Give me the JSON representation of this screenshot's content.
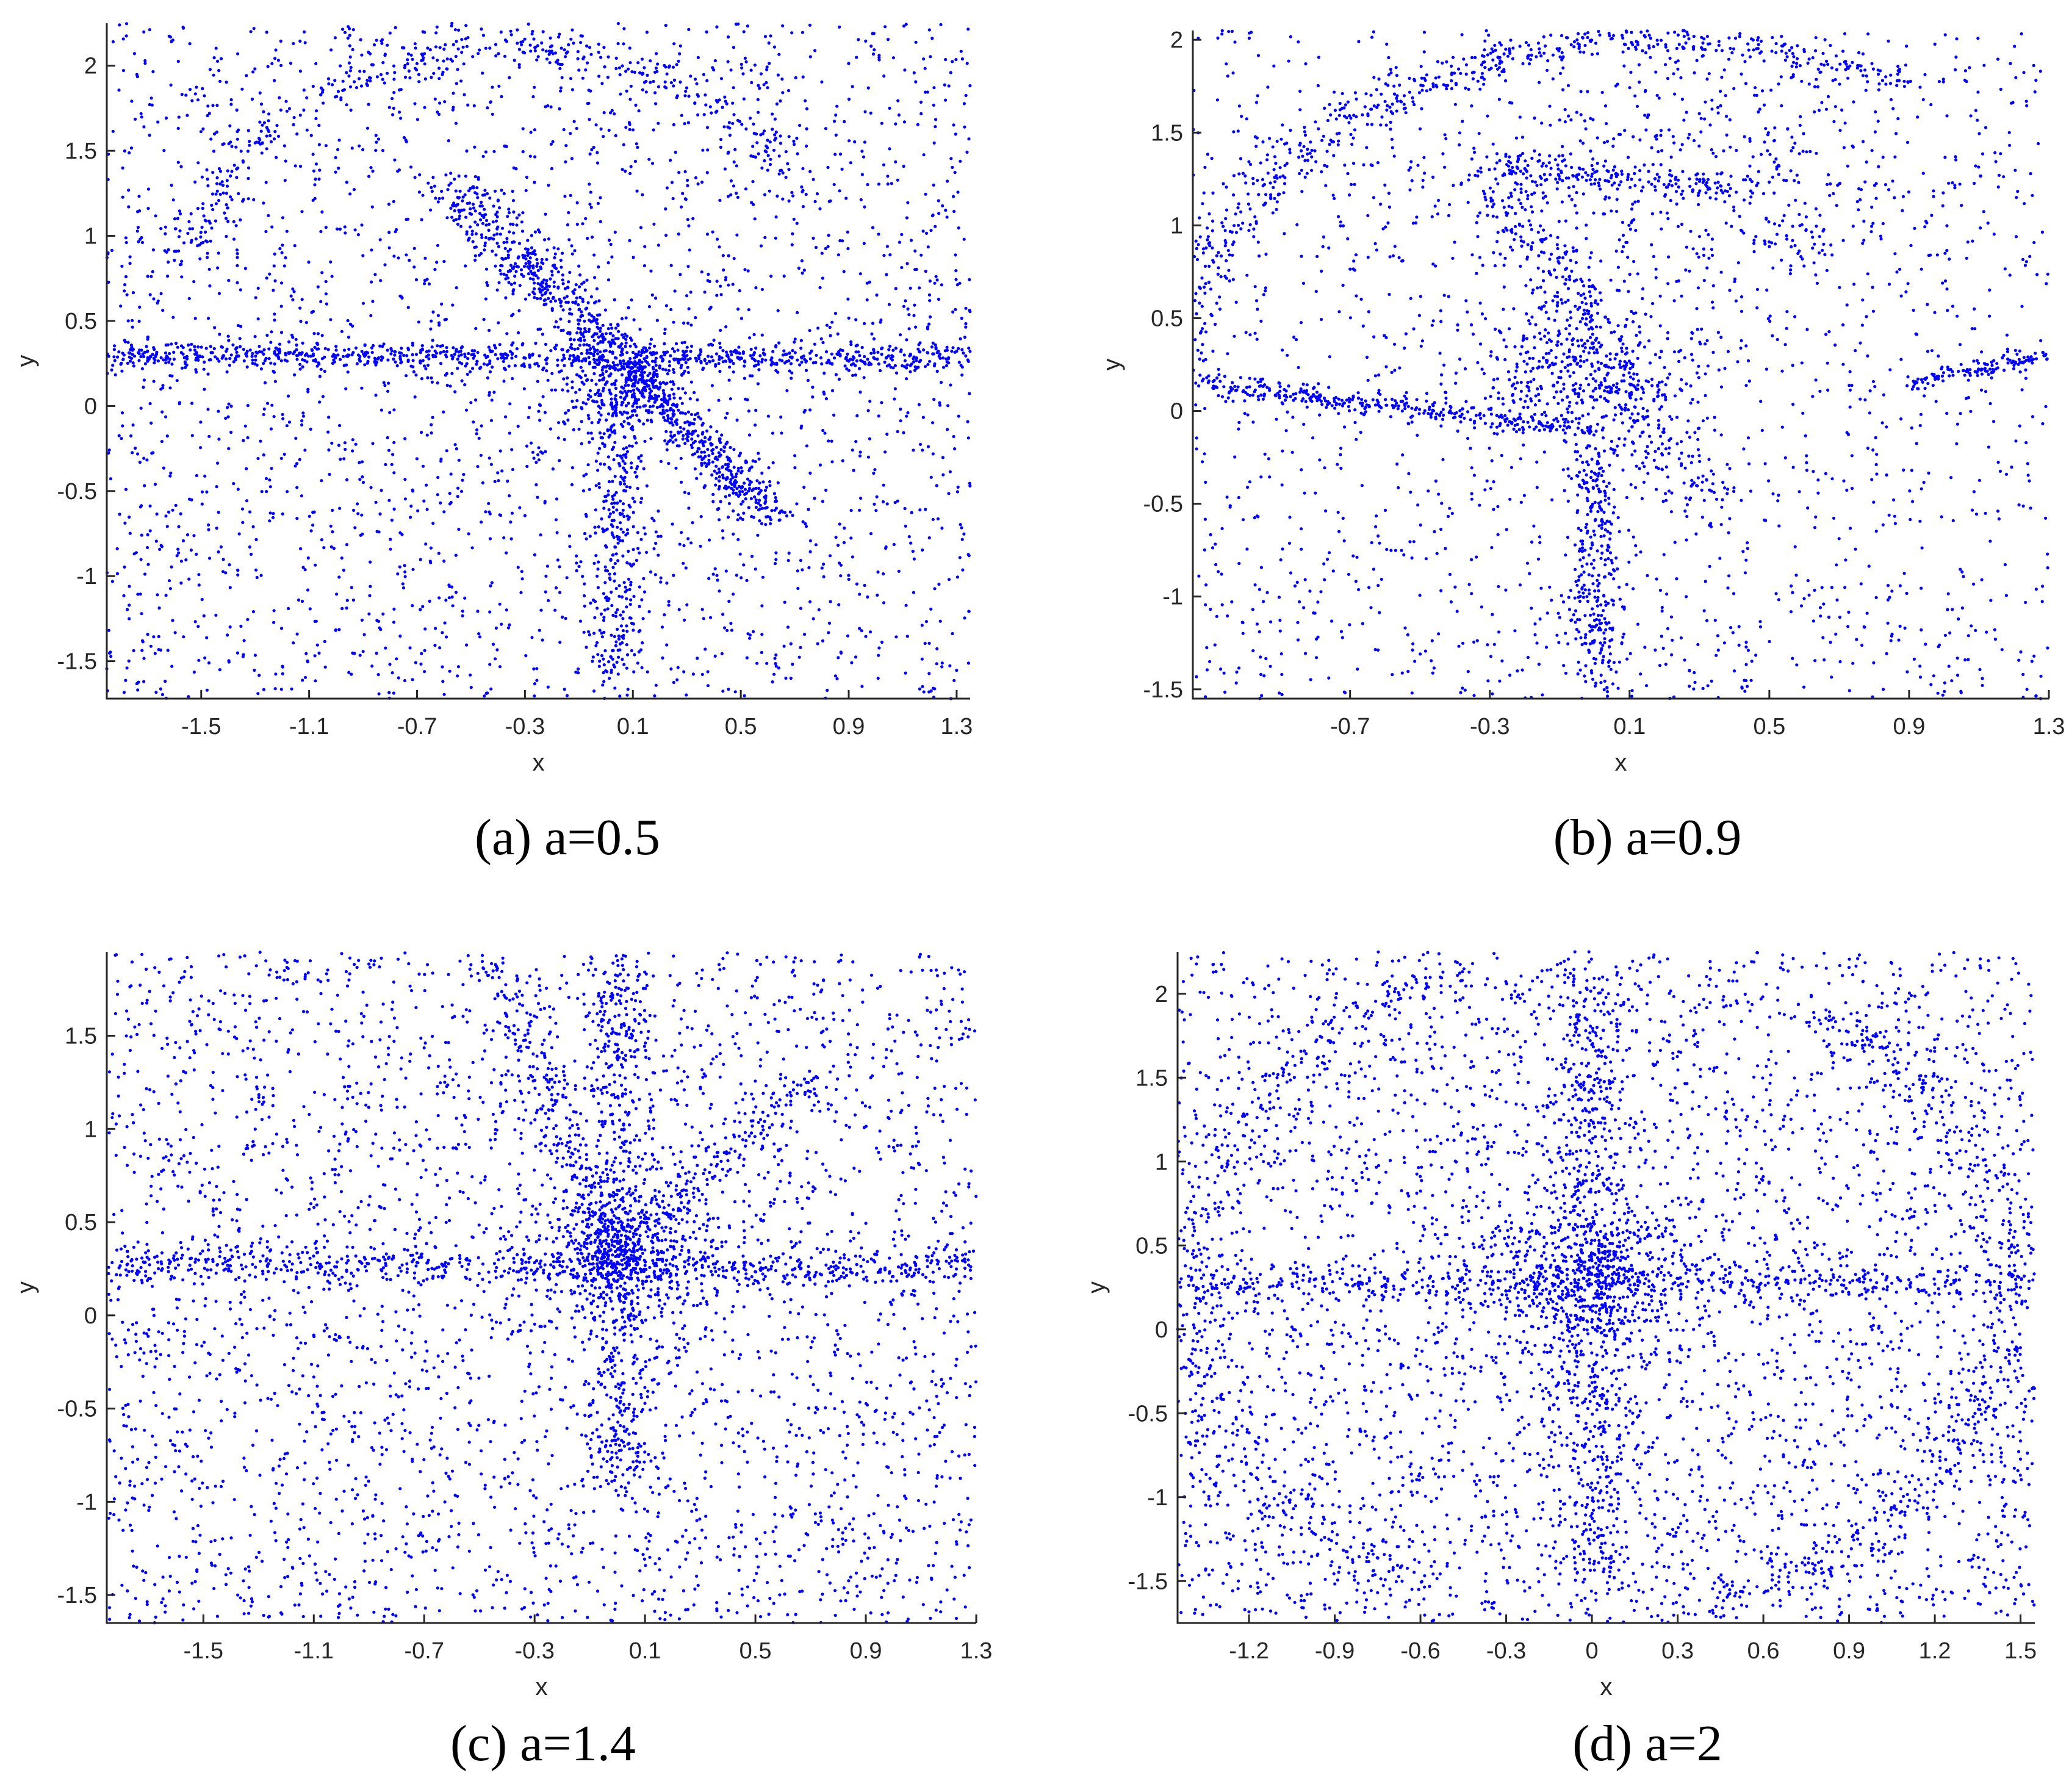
{
  "figure": {
    "point_color": "#0000ff",
    "axis_color": "#262626"
  },
  "chart_data": [
    {
      "type": "scatter",
      "caption": "(a) a=0.5",
      "xlabel": "x",
      "ylabel": "y",
      "xlim": [
        -1.85,
        1.35
      ],
      "ylim": [
        -1.72,
        2.25
      ],
      "xticks": [
        -1.5,
        -1.1,
        -0.7,
        -0.3,
        0.1,
        0.5,
        0.9,
        1.3
      ],
      "xtick_labels": [
        "-1.5",
        "-1.1",
        "-0.7",
        "-0.3",
        "0.1",
        "0.5",
        "0.9",
        "1.3"
      ],
      "yticks": [
        -1.5,
        -1,
        -0.5,
        0,
        0.5,
        1,
        1.5,
        2
      ],
      "ytick_labels": [
        "-1.5",
        "-1",
        "-0.5",
        "0",
        "0.5",
        "1",
        "1.5",
        "2"
      ],
      "points": {
        "count": 5200,
        "seed": 11,
        "uniform_fraction": 0.5,
        "structures": [
          {
            "kind": "line",
            "from": [
              -1.85,
              0.3
            ],
            "to": [
              1.35,
              0.28
            ],
            "weight": 0.16,
            "spread": 0.04
          },
          {
            "kind": "line",
            "from": [
              -0.6,
              1.3
            ],
            "to": [
              0.05,
              0.3
            ],
            "weight": 0.08,
            "spread": 0.06
          },
          {
            "kind": "line",
            "from": [
              0.05,
              0.3
            ],
            "to": [
              0.6,
              -0.65
            ],
            "weight": 0.08,
            "spread": 0.05
          },
          {
            "kind": "line",
            "from": [
              0.05,
              0.3
            ],
            "to": [
              0.05,
              -1.6
            ],
            "weight": 0.06,
            "spread": 0.05
          },
          {
            "kind": "arc",
            "center": [
              -0.35,
              0.6
            ],
            "rx": 1.2,
            "ry": 1.5,
            "from_deg": 30,
            "to_deg": 170,
            "weight": 0.07,
            "spread": 0.06
          },
          {
            "kind": "blob",
            "center": [
              0.05,
              0.1
            ],
            "r": 0.25,
            "weight": 0.05
          }
        ]
      }
    },
    {
      "type": "scatter",
      "caption": "(b) a=0.9",
      "xlabel": "x",
      "ylabel": "y",
      "xlim": [
        -1.15,
        1.3
      ],
      "ylim": [
        -1.55,
        2.05
      ],
      "xticks": [
        -0.7,
        -0.3,
        0.1,
        0.5,
        0.9,
        1.3
      ],
      "xtick_labels": [
        "-0.7",
        "-0.3",
        "0.1",
        "0.5",
        "0.9",
        "1.3"
      ],
      "yticks": [
        -1.5,
        -1,
        -0.5,
        0,
        0.5,
        1,
        1.5,
        2
      ],
      "ytick_labels": [
        "-1.5",
        "-1",
        "-0.5",
        "0",
        "0.5",
        "1",
        "1.5",
        "2"
      ],
      "points": {
        "count": 4200,
        "seed": 23,
        "uniform_fraction": 0.4,
        "structures": [
          {
            "kind": "line",
            "from": [
              -1.15,
              0.15
            ],
            "to": [
              0.0,
              -0.1
            ],
            "weight": 0.08,
            "spread": 0.03
          },
          {
            "kind": "line",
            "from": [
              0.9,
              0.15
            ],
            "to": [
              1.3,
              0.3
            ],
            "weight": 0.03,
            "spread": 0.02
          },
          {
            "kind": "line",
            "from": [
              0.0,
              -0.2
            ],
            "to": [
              0.0,
              -1.5
            ],
            "weight": 0.07,
            "spread": 0.04
          },
          {
            "kind": "line",
            "from": [
              -0.3,
              1.3
            ],
            "to": [
              0.3,
              -0.5
            ],
            "weight": 0.09,
            "spread": 0.07
          },
          {
            "kind": "line",
            "from": [
              -0.3,
              1.3
            ],
            "to": [
              0.45,
              1.2
            ],
            "weight": 0.04,
            "spread": 0.04
          },
          {
            "kind": "arc",
            "center": [
              0.2,
              0.1
            ],
            "rx": 1.4,
            "ry": 1.9,
            "from_deg": 60,
            "to_deg": 175,
            "weight": 0.14,
            "spread": 0.05
          },
          {
            "kind": "blob",
            "center": [
              -0.05,
              0.2
            ],
            "r": 0.3,
            "weight": 0.08
          },
          {
            "kind": "blob",
            "center": [
              0.3,
              1.2
            ],
            "r": 0.6,
            "weight": 0.07
          }
        ]
      }
    },
    {
      "type": "scatter",
      "caption": "(c) a=1.4",
      "xlabel": "x",
      "ylabel": "y",
      "xlim": [
        -1.85,
        1.3
      ],
      "ylim": [
        -1.65,
        1.95
      ],
      "xticks": [
        -1.5,
        -1.1,
        -0.7,
        -0.3,
        0.1,
        0.5,
        0.9,
        1.3
      ],
      "xtick_labels": [
        "-1.5",
        "-1.1",
        "-0.7",
        "-0.3",
        "0.1",
        "0.5",
        "0.9",
        "1.3"
      ],
      "yticks": [
        -1.5,
        -1,
        -0.5,
        0,
        0.5,
        1,
        1.5
      ],
      "ytick_labels": [
        "-1.5",
        "-1",
        "-0.5",
        "0",
        "0.5",
        "1",
        "1.5"
      ],
      "points": {
        "count": 5200,
        "seed": 37,
        "uniform_fraction": 0.6,
        "structures": [
          {
            "kind": "line",
            "from": [
              -1.85,
              0.28
            ],
            "to": [
              1.3,
              0.25
            ],
            "weight": 0.1,
            "spread": 0.05
          },
          {
            "kind": "line",
            "from": [
              0.0,
              1.9
            ],
            "to": [
              0.0,
              -0.9
            ],
            "weight": 0.1,
            "spread": 0.06
          },
          {
            "kind": "line",
            "from": [
              -0.45,
              1.9
            ],
            "to": [
              0.0,
              0.3
            ],
            "weight": 0.04,
            "spread": 0.05
          },
          {
            "kind": "line",
            "from": [
              0.0,
              0.3
            ],
            "to": [
              0.7,
              1.3
            ],
            "weight": 0.03,
            "spread": 0.05
          },
          {
            "kind": "blob",
            "center": [
              0.0,
              0.35
            ],
            "r": 0.3,
            "weight": 0.08
          }
        ]
      }
    },
    {
      "type": "scatter",
      "caption": "(d) a=2",
      "xlabel": "x",
      "ylabel": "y",
      "xlim": [
        -1.45,
        1.55
      ],
      "ylim": [
        -1.75,
        2.25
      ],
      "xticks": [
        -1.2,
        -0.9,
        -0.6,
        -0.3,
        0,
        0.3,
        0.6,
        0.9,
        1.2,
        1.5
      ],
      "xtick_labels": [
        "-1.2",
        "-0.9",
        "-0.6",
        "-0.3",
        "0",
        "0.3",
        "0.6",
        "0.9",
        "1.2",
        "1.5"
      ],
      "yticks": [
        -1.5,
        -1,
        -0.5,
        0,
        0.5,
        1,
        1.5,
        2
      ],
      "ytick_labels": [
        "-1.5",
        "-1",
        "-0.5",
        "0",
        "0.5",
        "1",
        "1.5",
        "2"
      ],
      "points": {
        "count": 6000,
        "seed": 53,
        "uniform_fraction": 0.62,
        "structures": [
          {
            "kind": "line",
            "from": [
              -1.45,
              0.28
            ],
            "to": [
              1.55,
              0.28
            ],
            "weight": 0.07,
            "spread": 0.05
          },
          {
            "kind": "line",
            "from": [
              0.0,
              2.2
            ],
            "to": [
              0.0,
              -1.5
            ],
            "weight": 0.1,
            "spread": 0.07
          },
          {
            "kind": "blob",
            "center": [
              0.0,
              0.3
            ],
            "r": 0.35,
            "weight": 0.08
          },
          {
            "kind": "arc",
            "center": [
              0.1,
              0.25
            ],
            "rx": 1.35,
            "ry": 1.9,
            "from_deg": -80,
            "to_deg": 60,
            "weight": 0.06,
            "spread": 0.06
          },
          {
            "kind": "arc",
            "center": [
              -0.2,
              0.25
            ],
            "rx": 1.2,
            "ry": 1.9,
            "from_deg": 100,
            "to_deg": 250,
            "weight": 0.05,
            "spread": 0.06
          }
        ]
      }
    }
  ]
}
